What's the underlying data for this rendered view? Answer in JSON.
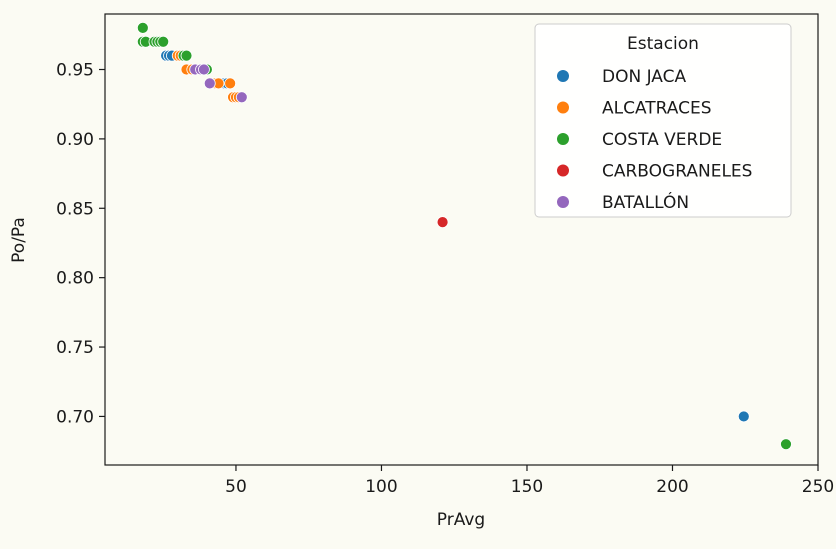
{
  "chart_data": {
    "type": "scatter",
    "title": "",
    "xlabel": "PrAvg",
    "ylabel": "Po/Pa",
    "xlim": [
      5,
      250
    ],
    "ylim": [
      0.665,
      0.99
    ],
    "x_ticks": [
      50,
      100,
      150,
      200,
      250
    ],
    "y_ticks": [
      0.7,
      0.75,
      0.8,
      0.85,
      0.9,
      0.95
    ],
    "x_tick_labels": [
      "50",
      "100",
      "150",
      "200",
      "250"
    ],
    "y_tick_labels": [
      "0.70",
      "0.75",
      "0.80",
      "0.85",
      "0.90",
      "0.95"
    ],
    "grid": false,
    "legend": {
      "title": "Estacion",
      "placement": "top-right"
    },
    "series": [
      {
        "name": "DON JACA",
        "color": "#1f77b4",
        "points": [
          [
            26,
            0.96
          ],
          [
            27,
            0.96
          ],
          [
            28,
            0.96
          ],
          [
            45,
            0.94
          ],
          [
            46,
            0.94
          ],
          [
            47,
            0.94
          ],
          [
            224.5,
            0.7
          ]
        ]
      },
      {
        "name": "ALCATRACES",
        "color": "#ff7f0e",
        "points": [
          [
            30,
            0.96
          ],
          [
            31,
            0.96
          ],
          [
            33,
            0.95
          ],
          [
            35,
            0.95
          ],
          [
            42,
            0.94
          ],
          [
            43,
            0.94
          ],
          [
            44,
            0.94
          ],
          [
            48,
            0.94
          ],
          [
            49,
            0.93
          ],
          [
            50,
            0.93
          ],
          [
            51,
            0.93
          ]
        ]
      },
      {
        "name": "COSTA VERDE",
        "color": "#2ca02c",
        "points": [
          [
            18,
            0.98
          ],
          [
            18,
            0.97
          ],
          [
            19,
            0.97
          ],
          [
            22,
            0.97
          ],
          [
            23,
            0.97
          ],
          [
            24,
            0.97
          ],
          [
            25,
            0.97
          ],
          [
            32,
            0.96
          ],
          [
            33,
            0.96
          ],
          [
            40,
            0.95
          ],
          [
            239,
            0.68
          ]
        ]
      },
      {
        "name": "CARBOGRANELES",
        "color": "#d62728",
        "points": [
          [
            121,
            0.84
          ]
        ]
      },
      {
        "name": "BATALLÓN",
        "color": "#9467bd",
        "points": [
          [
            36,
            0.95
          ],
          [
            38,
            0.95
          ],
          [
            39,
            0.95
          ],
          [
            41,
            0.94
          ],
          [
            52,
            0.93
          ]
        ]
      }
    ]
  }
}
